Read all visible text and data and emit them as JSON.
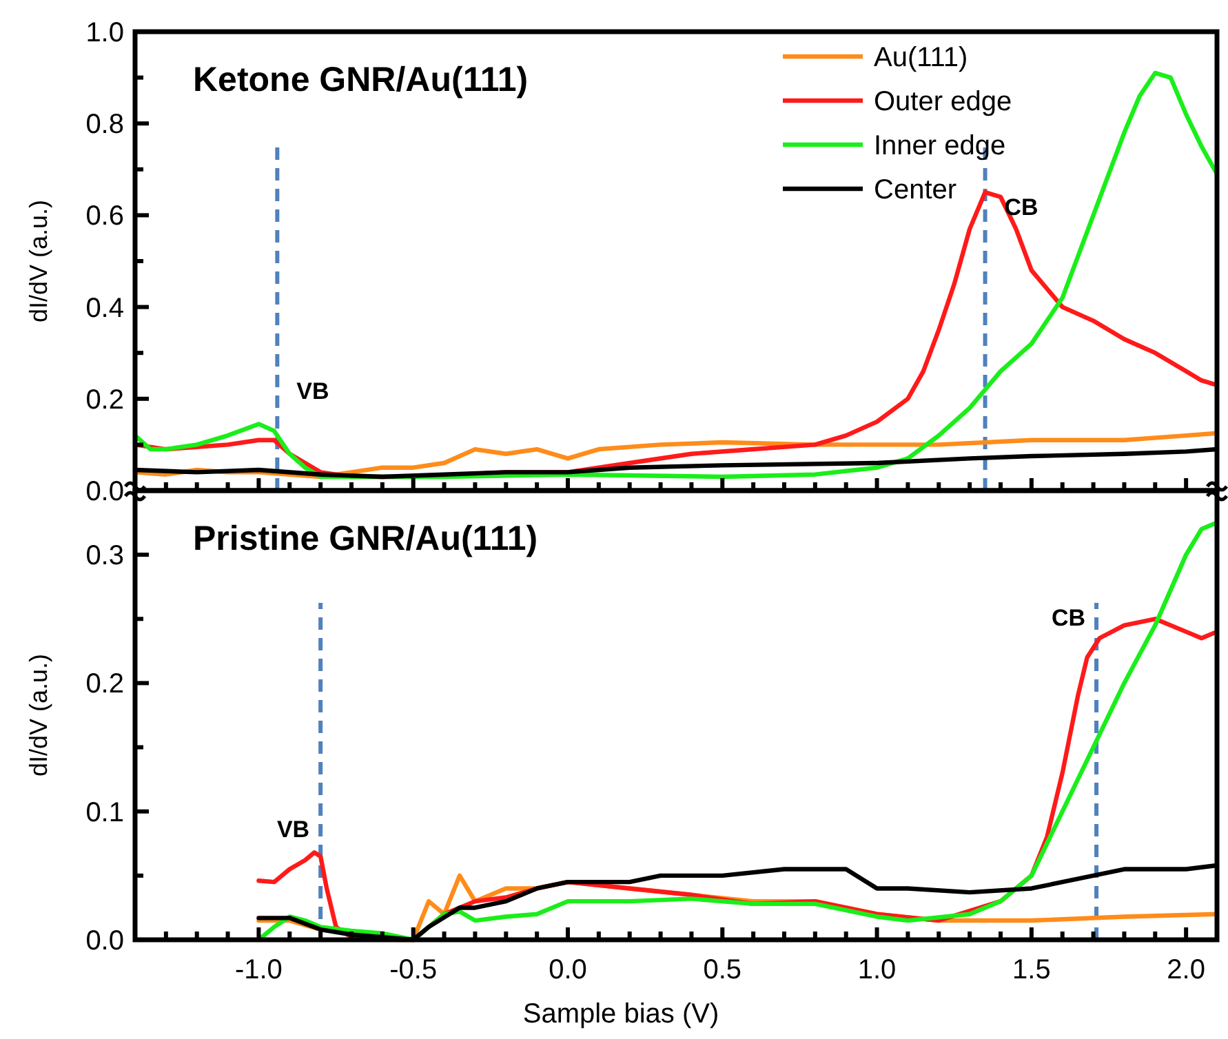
{
  "chart_data": [
    {
      "type": "line",
      "title": "Ketone GNR/Au(111)",
      "ylabel": "dI/dV (a.u.)",
      "xlim": [
        -1.4,
        2.1
      ],
      "ylim": [
        0,
        1.0
      ],
      "xticks": [
        {
          "value": -1.3,
          "label": null
        },
        {
          "value": -1.2,
          "label": null
        },
        {
          "value": -1.1,
          "label": null
        },
        {
          "value": -1.0,
          "label": null
        },
        {
          "value": -0.9,
          "label": null
        },
        {
          "value": -0.8,
          "label": null
        },
        {
          "value": -0.7,
          "label": null
        },
        {
          "value": -0.6,
          "label": null
        },
        {
          "value": -0.5,
          "label": null
        },
        {
          "value": -0.4,
          "label": null
        },
        {
          "value": -0.3,
          "label": null
        },
        {
          "value": -0.2,
          "label": null
        },
        {
          "value": -0.1,
          "label": null
        },
        {
          "value": 0,
          "label": null
        },
        {
          "value": 0.1,
          "label": null
        },
        {
          "value": 0.2,
          "label": null
        },
        {
          "value": 0.3,
          "label": null
        },
        {
          "value": 0.4,
          "label": null
        },
        {
          "value": 0.5,
          "label": null
        },
        {
          "value": 0.6,
          "label": null
        },
        {
          "value": 0.7,
          "label": null
        },
        {
          "value": 0.8,
          "label": null
        },
        {
          "value": 0.9,
          "label": null
        },
        {
          "value": 1.0,
          "label": null
        },
        {
          "value": 1.1,
          "label": null
        },
        {
          "value": 1.2,
          "label": null
        },
        {
          "value": 1.3,
          "label": null
        },
        {
          "value": 1.4,
          "label": null
        },
        {
          "value": 1.5,
          "label": null
        },
        {
          "value": 1.6,
          "label": null
        },
        {
          "value": 1.7,
          "label": null
        },
        {
          "value": 1.8,
          "label": null
        },
        {
          "value": 1.9,
          "label": null
        },
        {
          "value": 2.0,
          "label": null
        }
      ],
      "yticks": [
        {
          "value": 0,
          "label": "0.0"
        },
        {
          "value": 0.1,
          "label": null
        },
        {
          "value": 0.2,
          "label": "0.2"
        },
        {
          "value": 0.3,
          "label": null
        },
        {
          "value": 0.4,
          "label": "0.4"
        },
        {
          "value": 0.5,
          "label": null
        },
        {
          "value": 0.6,
          "label": "0.6"
        },
        {
          "value": 0.7,
          "label": null
        },
        {
          "value": 0.8,
          "label": "0.8"
        },
        {
          "value": 0.9,
          "label": null
        },
        {
          "value": 1.0,
          "label": "1.0"
        }
      ],
      "tick_labels": "y",
      "legend": "top right",
      "line_style": "solid",
      "grid": false,
      "ref_lines": [
        {
          "axis": "x",
          "value": -0.94,
          "color": "#4f81bd",
          "line_style": "dashed"
        },
        {
          "axis": "x",
          "value": 1.35,
          "color": "#4f81bd",
          "line_style": "dashed"
        }
      ],
      "annotations": [
        {
          "text": "VB",
          "x": -0.94,
          "y": 0.2
        },
        {
          "text": "CB",
          "x": 1.35,
          "y": 0.6
        }
      ],
      "series": [
        {
          "name": "Au(111)",
          "color": "#ff8c1a",
          "x": [
            -1.4,
            -1.3,
            -1.2,
            -1.1,
            -1.0,
            -0.9,
            -0.8,
            -0.7,
            -0.6,
            -0.5,
            -0.4,
            -0.3,
            -0.2,
            -0.1,
            0.0,
            0.1,
            0.3,
            0.5,
            0.8,
            1.0,
            1.2,
            1.5,
            1.8,
            2.0,
            2.1
          ],
          "values": [
            0.04,
            0.035,
            0.045,
            0.04,
            0.04,
            0.035,
            0.03,
            0.04,
            0.05,
            0.05,
            0.06,
            0.09,
            0.08,
            0.09,
            0.07,
            0.09,
            0.1,
            0.105,
            0.1,
            0.1,
            0.1,
            0.11,
            0.11,
            0.12,
            0.125
          ]
        },
        {
          "name": "Outer edge",
          "color": "#ff1a1a",
          "x": [
            -1.4,
            -1.3,
            -1.2,
            -1.1,
            -1.0,
            -0.95,
            -0.9,
            -0.8,
            -0.7,
            -0.5,
            -0.2,
            0.0,
            0.2,
            0.4,
            0.6,
            0.8,
            0.9,
            1.0,
            1.1,
            1.15,
            1.2,
            1.25,
            1.3,
            1.35,
            1.4,
            1.45,
            1.5,
            1.55,
            1.6,
            1.7,
            1.8,
            1.9,
            2.0,
            2.05,
            2.1
          ],
          "values": [
            0.1,
            0.09,
            0.095,
            0.1,
            0.11,
            0.11,
            0.08,
            0.04,
            0.03,
            0.03,
            0.04,
            0.04,
            0.06,
            0.08,
            0.09,
            0.1,
            0.12,
            0.15,
            0.2,
            0.26,
            0.35,
            0.45,
            0.57,
            0.65,
            0.64,
            0.57,
            0.48,
            0.44,
            0.4,
            0.37,
            0.33,
            0.3,
            0.26,
            0.24,
            0.23
          ]
        },
        {
          "name": "Inner edge",
          "color": "#1aee1a",
          "x": [
            -1.4,
            -1.35,
            -1.3,
            -1.2,
            -1.1,
            -1.0,
            -0.95,
            -0.9,
            -0.85,
            -0.8,
            -0.6,
            -0.4,
            0.0,
            0.5,
            0.8,
            1.0,
            1.1,
            1.2,
            1.3,
            1.35,
            1.4,
            1.5,
            1.6,
            1.7,
            1.8,
            1.85,
            1.9,
            1.95,
            2.0,
            2.05,
            2.1
          ],
          "values": [
            0.12,
            0.09,
            0.09,
            0.1,
            0.12,
            0.145,
            0.13,
            0.08,
            0.05,
            0.03,
            0.03,
            0.03,
            0.035,
            0.03,
            0.035,
            0.05,
            0.07,
            0.12,
            0.18,
            0.22,
            0.26,
            0.32,
            0.42,
            0.6,
            0.78,
            0.86,
            0.91,
            0.9,
            0.82,
            0.75,
            0.69
          ]
        },
        {
          "name": "Center",
          "color": "#000000",
          "x": [
            -1.4,
            -1.2,
            -1.0,
            -0.8,
            -0.6,
            -0.4,
            -0.2,
            0.0,
            0.2,
            0.5,
            1.0,
            1.3,
            1.5,
            1.8,
            2.0,
            2.1
          ],
          "values": [
            0.045,
            0.04,
            0.045,
            0.035,
            0.03,
            0.035,
            0.04,
            0.04,
            0.05,
            0.055,
            0.06,
            0.07,
            0.075,
            0.08,
            0.085,
            0.09
          ]
        }
      ]
    },
    {
      "type": "line",
      "title": "Pristine GNR/Au(111)",
      "xlabel": "Sample bias (V)",
      "ylabel": "dI/dV (a.u.)",
      "xlim": [
        -1.4,
        2.1
      ],
      "ylim": [
        0,
        0.35
      ],
      "xticks": [
        {
          "value": -1.3,
          "label": null
        },
        {
          "value": -1.2,
          "label": null
        },
        {
          "value": -1.1,
          "label": null
        },
        {
          "value": -1.0,
          "label": "-1.0"
        },
        {
          "value": -0.9,
          "label": null
        },
        {
          "value": -0.8,
          "label": null
        },
        {
          "value": -0.7,
          "label": null
        },
        {
          "value": -0.6,
          "label": null
        },
        {
          "value": -0.5,
          "label": "-0.5"
        },
        {
          "value": -0.4,
          "label": null
        },
        {
          "value": -0.3,
          "label": null
        },
        {
          "value": -0.2,
          "label": null
        },
        {
          "value": -0.1,
          "label": null
        },
        {
          "value": 0,
          "label": "0.0"
        },
        {
          "value": 0.1,
          "label": null
        },
        {
          "value": 0.2,
          "label": null
        },
        {
          "value": 0.3,
          "label": null
        },
        {
          "value": 0.4,
          "label": null
        },
        {
          "value": 0.5,
          "label": "0.5"
        },
        {
          "value": 0.6,
          "label": null
        },
        {
          "value": 0.7,
          "label": null
        },
        {
          "value": 0.8,
          "label": null
        },
        {
          "value": 0.9,
          "label": null
        },
        {
          "value": 1.0,
          "label": "1.0"
        },
        {
          "value": 1.1,
          "label": null
        },
        {
          "value": 1.2,
          "label": null
        },
        {
          "value": 1.3,
          "label": null
        },
        {
          "value": 1.4,
          "label": null
        },
        {
          "value": 1.5,
          "label": "1.5"
        },
        {
          "value": 1.6,
          "label": null
        },
        {
          "value": 1.7,
          "label": null
        },
        {
          "value": 1.8,
          "label": null
        },
        {
          "value": 1.9,
          "label": null
        },
        {
          "value": 2.0,
          "label": "2.0"
        }
      ],
      "yticks": [
        {
          "value": 0,
          "label": "0.0"
        },
        {
          "value": 0.05,
          "label": null
        },
        {
          "value": 0.1,
          "label": "0.1"
        },
        {
          "value": 0.15,
          "label": null
        },
        {
          "value": 0.2,
          "label": "0.2"
        },
        {
          "value": 0.25,
          "label": null
        },
        {
          "value": 0.3,
          "label": "0.3"
        }
      ],
      "line_style": "solid",
      "grid": false,
      "ref_lines": [
        {
          "axis": "x",
          "value": -0.8,
          "color": "#4f81bd",
          "line_style": "dashed"
        },
        {
          "axis": "x",
          "value": 1.71,
          "color": "#4f81bd",
          "line_style": "dashed"
        }
      ],
      "annotations": [
        {
          "text": "VB",
          "x": -0.8,
          "y": 0.08
        },
        {
          "text": "CB",
          "x": 1.71,
          "y": 0.245
        }
      ],
      "series": [
        {
          "color": "#ff8c1a",
          "x": [
            -1.0,
            -0.9,
            -0.8,
            -0.7,
            -0.55,
            -0.5,
            -0.45,
            -0.4,
            -0.35,
            -0.3,
            -0.2,
            -0.1,
            0.0,
            0.2,
            0.4,
            0.6,
            0.8,
            1.0,
            1.2,
            1.5,
            1.8,
            2.1
          ],
          "values": [
            0.015,
            0.015,
            0.008,
            0.005,
            0.0,
            0.0,
            0.03,
            0.02,
            0.05,
            0.03,
            0.04,
            0.04,
            0.045,
            0.04,
            0.035,
            0.03,
            0.03,
            0.02,
            0.015,
            0.015,
            0.018,
            0.02
          ]
        },
        {
          "color": "#ff1a1a",
          "x": [
            -1.0,
            -0.95,
            -0.9,
            -0.85,
            -0.82,
            -0.8,
            -0.78,
            -0.75,
            -0.7,
            -0.5,
            -0.45,
            -0.4,
            -0.3,
            -0.2,
            -0.1,
            0.0,
            0.2,
            0.4,
            0.6,
            0.8,
            1.0,
            1.2,
            1.4,
            1.5,
            1.55,
            1.6,
            1.65,
            1.68,
            1.72,
            1.8,
            1.9,
            2.0,
            2.05,
            2.1
          ],
          "values": [
            0.046,
            0.045,
            0.055,
            0.062,
            0.068,
            0.065,
            0.04,
            0.01,
            0.002,
            0.0,
            0.01,
            0.02,
            0.03,
            0.033,
            0.04,
            0.045,
            0.04,
            0.035,
            0.028,
            0.03,
            0.02,
            0.015,
            0.03,
            0.05,
            0.08,
            0.13,
            0.19,
            0.22,
            0.235,
            0.245,
            0.25,
            0.24,
            0.235,
            0.24
          ]
        },
        {
          "color": "#1aee1a",
          "x": [
            -1.0,
            -0.95,
            -0.9,
            -0.85,
            -0.8,
            -0.7,
            -0.6,
            -0.5,
            -0.45,
            -0.4,
            -0.35,
            -0.3,
            -0.2,
            -0.1,
            0.0,
            0.2,
            0.4,
            0.6,
            0.8,
            1.0,
            1.1,
            1.3,
            1.4,
            1.5,
            1.6,
            1.7,
            1.8,
            1.9,
            2.0,
            2.05,
            2.1
          ],
          "values": [
            0.0,
            0.01,
            0.018,
            0.015,
            0.01,
            0.007,
            0.005,
            0.0,
            0.01,
            0.02,
            0.022,
            0.015,
            0.018,
            0.02,
            0.03,
            0.03,
            0.032,
            0.028,
            0.028,
            0.018,
            0.015,
            0.02,
            0.03,
            0.05,
            0.1,
            0.15,
            0.2,
            0.245,
            0.3,
            0.32,
            0.325
          ]
        },
        {
          "color": "#000000",
          "x": [
            -1.0,
            -0.9,
            -0.8,
            -0.7,
            -0.5,
            -0.45,
            -0.35,
            -0.3,
            -0.2,
            -0.1,
            0.0,
            0.2,
            0.3,
            0.5,
            0.7,
            0.9,
            1.0,
            1.1,
            1.3,
            1.5,
            1.7,
            1.8,
            2.0,
            2.1
          ],
          "values": [
            0.017,
            0.017,
            0.008,
            0.004,
            0.0,
            0.01,
            0.025,
            0.025,
            0.03,
            0.04,
            0.045,
            0.045,
            0.05,
            0.05,
            0.055,
            0.055,
            0.04,
            0.04,
            0.037,
            0.04,
            0.05,
            0.055,
            0.055,
            0.058
          ]
        }
      ]
    }
  ]
}
